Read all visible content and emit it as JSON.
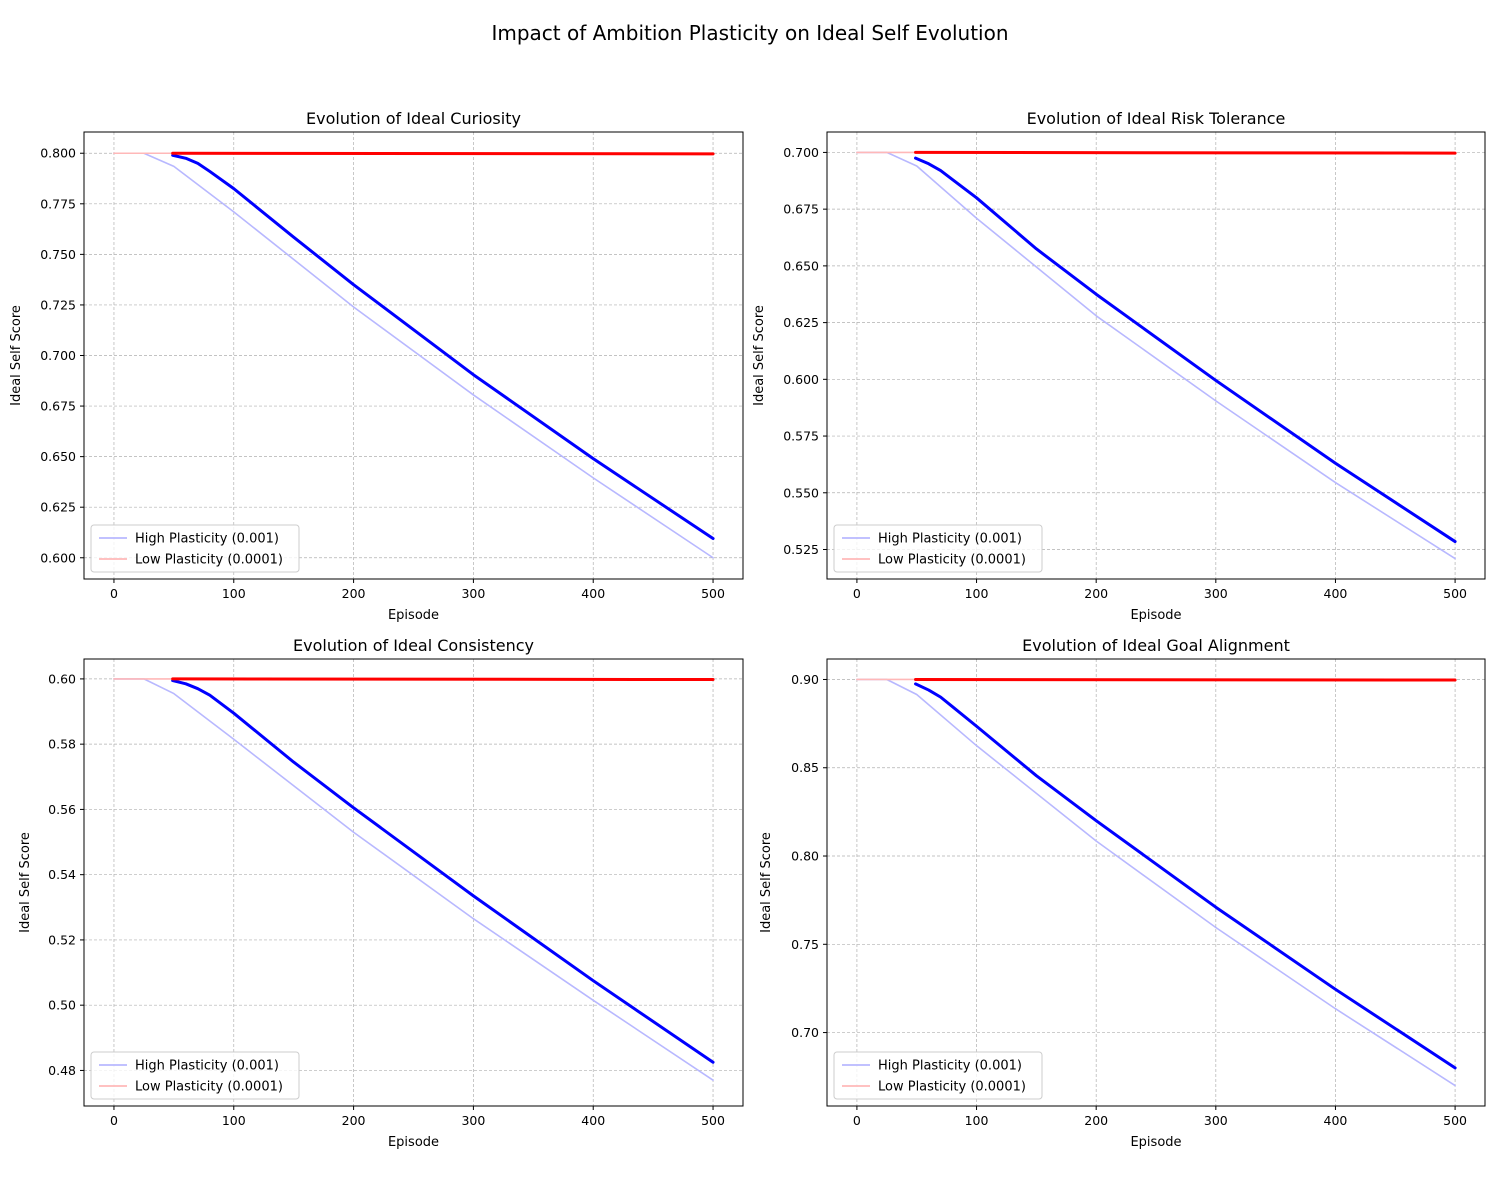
{
  "figure_title": "Impact of Ambition Plasticity on Ideal Self Evolution",
  "colors": {
    "high_main": "#0000ff",
    "low_main": "#ff0000",
    "high_faint": "#b8b8ff",
    "low_faint": "#ffb8b8"
  },
  "chart_data": [
    {
      "type": "line",
      "title": "Evolution of Ideal Curiosity",
      "xlabel": "Episode",
      "ylabel": "Ideal Self Score",
      "xlim": [
        -25,
        525
      ],
      "ylim": [
        0.5895,
        0.8105
      ],
      "xticks": [
        0,
        100,
        200,
        300,
        400,
        500
      ],
      "yticks": [
        0.6,
        0.625,
        0.65,
        0.675,
        0.7,
        0.725,
        0.75,
        0.775,
        0.8
      ],
      "ytick_labels": [
        "0.600",
        "0.625",
        "0.650",
        "0.675",
        "0.700",
        "0.725",
        "0.750",
        "0.775",
        "0.800"
      ],
      "grid": true,
      "legend": {
        "position": "lower-left",
        "entries": [
          "High Plasticity (0.001)",
          "Low Plasticity (0.0001)"
        ]
      },
      "series": [
        {
          "name": "High Plasticity (0.001)",
          "style": "faint",
          "color": "#b8b8ff",
          "x": [
            0,
            25,
            50,
            100,
            200,
            300,
            400,
            500
          ],
          "y": [
            0.8,
            0.8,
            0.7935,
            0.771,
            0.724,
            0.6805,
            0.6395,
            0.6
          ]
        },
        {
          "name": "Low Plasticity (0.0001)",
          "style": "faint",
          "color": "#ffb8b8",
          "x": [
            0,
            50
          ],
          "y": [
            0.8,
            0.8
          ]
        },
        {
          "style": "main",
          "color": "#0000ff",
          "x": [
            49,
            60,
            70,
            80,
            100,
            150,
            200,
            300,
            400,
            500
          ],
          "y": [
            0.799,
            0.7975,
            0.795,
            0.791,
            0.7825,
            0.7585,
            0.735,
            0.6905,
            0.649,
            0.6095
          ]
        },
        {
          "style": "main",
          "color": "#ff0000",
          "x": [
            49,
            500
          ],
          "y": [
            0.8,
            0.7997
          ]
        }
      ]
    },
    {
      "type": "line",
      "title": "Evolution of Ideal Risk Tolerance",
      "xlabel": "Episode",
      "ylabel": "Ideal Self Score",
      "xlim": [
        -25,
        525
      ],
      "ylim": [
        0.512,
        0.709
      ],
      "xticks": [
        0,
        100,
        200,
        300,
        400,
        500
      ],
      "yticks": [
        0.525,
        0.55,
        0.575,
        0.6,
        0.625,
        0.65,
        0.675,
        0.7
      ],
      "ytick_labels": [
        "0.525",
        "0.550",
        "0.575",
        "0.600",
        "0.625",
        "0.650",
        "0.675",
        "0.700"
      ],
      "grid": true,
      "legend": {
        "position": "lower-left",
        "entries": [
          "High Plasticity (0.001)",
          "Low Plasticity (0.0001)"
        ]
      },
      "series": [
        {
          "name": "High Plasticity (0.001)",
          "style": "faint",
          "color": "#b8b8ff",
          "x": [
            0,
            25,
            50,
            100,
            200,
            300,
            400,
            500
          ],
          "y": [
            0.7,
            0.7,
            0.694,
            0.671,
            0.628,
            0.5905,
            0.5545,
            0.521
          ]
        },
        {
          "name": "Low Plasticity (0.0001)",
          "style": "faint",
          "color": "#ffb8b8",
          "x": [
            0,
            50
          ],
          "y": [
            0.7,
            0.7
          ]
        },
        {
          "style": "main",
          "color": "#0000ff",
          "x": [
            49,
            60,
            70,
            80,
            100,
            150,
            200,
            300,
            400,
            500
          ],
          "y": [
            0.6975,
            0.695,
            0.692,
            0.688,
            0.68,
            0.6575,
            0.6375,
            0.5995,
            0.563,
            0.5285
          ]
        },
        {
          "style": "main",
          "color": "#ff0000",
          "x": [
            49,
            500
          ],
          "y": [
            0.7,
            0.6997
          ]
        }
      ]
    },
    {
      "type": "line",
      "title": "Evolution of Ideal Consistency",
      "xlabel": "Episode",
      "ylabel": "Ideal Self Score",
      "xlim": [
        -25,
        525
      ],
      "ylim": [
        0.4691,
        0.6061
      ],
      "xticks": [
        0,
        100,
        200,
        300,
        400,
        500
      ],
      "yticks": [
        0.48,
        0.5,
        0.52,
        0.54,
        0.56,
        0.58,
        0.6
      ],
      "ytick_labels": [
        "0.48",
        "0.50",
        "0.52",
        "0.54",
        "0.56",
        "0.58",
        "0.60"
      ],
      "grid": true,
      "legend": {
        "position": "lower-left",
        "entries": [
          "High Plasticity (0.001)",
          "Low Plasticity (0.0001)"
        ]
      },
      "series": [
        {
          "name": "High Plasticity (0.001)",
          "style": "faint",
          "color": "#b8b8ff",
          "x": [
            0,
            25,
            50,
            100,
            200,
            300,
            400,
            500
          ],
          "y": [
            0.6,
            0.6,
            0.5955,
            0.5815,
            0.553,
            0.5265,
            0.5015,
            0.477
          ]
        },
        {
          "name": "Low Plasticity (0.0001)",
          "style": "faint",
          "color": "#ffb8b8",
          "x": [
            0,
            50
          ],
          "y": [
            0.6,
            0.6
          ]
        },
        {
          "style": "main",
          "color": "#0000ff",
          "x": [
            49,
            60,
            70,
            80,
            100,
            150,
            200,
            300,
            400,
            500
          ],
          "y": [
            0.5995,
            0.5985,
            0.597,
            0.595,
            0.5895,
            0.5745,
            0.5605,
            0.5335,
            0.5075,
            0.4825
          ]
        },
        {
          "style": "main",
          "color": "#ff0000",
          "x": [
            49,
            500
          ],
          "y": [
            0.6,
            0.5998
          ]
        }
      ]
    },
    {
      "type": "line",
      "title": "Evolution of Ideal Goal Alignment",
      "xlabel": "Episode",
      "ylabel": "Ideal Self Score",
      "xlim": [
        -25,
        525
      ],
      "ylim": [
        0.6584,
        0.9116
      ],
      "xticks": [
        0,
        100,
        200,
        300,
        400,
        500
      ],
      "yticks": [
        0.7,
        0.75,
        0.8,
        0.85,
        0.9
      ],
      "ytick_labels": [
        "0.70",
        "0.75",
        "0.80",
        "0.85",
        "0.90"
      ],
      "grid": true,
      "legend": {
        "position": "lower-left",
        "entries": [
          "High Plasticity (0.001)",
          "Low Plasticity (0.0001)"
        ]
      },
      "series": [
        {
          "name": "High Plasticity (0.001)",
          "style": "faint",
          "color": "#b8b8ff",
          "x": [
            0,
            25,
            50,
            100,
            200,
            300,
            400,
            500
          ],
          "y": [
            0.9,
            0.9,
            0.8915,
            0.8625,
            0.8085,
            0.7595,
            0.7135,
            0.67
          ]
        },
        {
          "name": "Low Plasticity (0.0001)",
          "style": "faint",
          "color": "#ffb8b8",
          "x": [
            0,
            50
          ],
          "y": [
            0.9,
            0.9
          ]
        },
        {
          "style": "main",
          "color": "#0000ff",
          "x": [
            49,
            60,
            70,
            80,
            100,
            150,
            200,
            300,
            400,
            500
          ],
          "y": [
            0.8975,
            0.894,
            0.89,
            0.8845,
            0.8735,
            0.8455,
            0.82,
            0.771,
            0.7245,
            0.68
          ]
        },
        {
          "style": "main",
          "color": "#ff0000",
          "x": [
            49,
            500
          ],
          "y": [
            0.9,
            0.8997
          ]
        }
      ]
    }
  ]
}
